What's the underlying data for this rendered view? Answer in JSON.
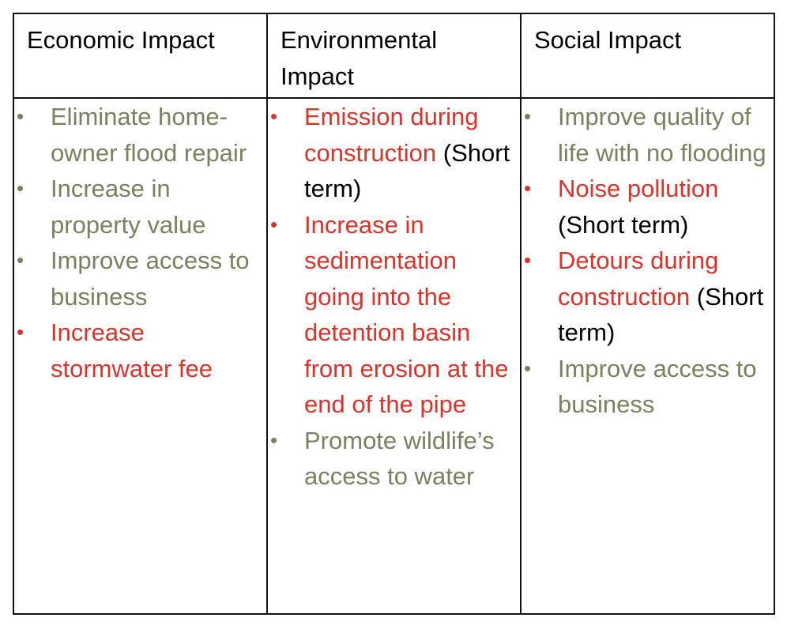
{
  "table": {
    "headers": [
      "Economic Impact",
      "Environmental Impact",
      "Social Impact"
    ],
    "bullet_glyph": "•",
    "colors": {
      "positive": "#7b8060",
      "negative": "#d9342b",
      "neutral": "#000000"
    },
    "columns": [
      {
        "items": [
          {
            "kind": "positive",
            "text": "Eliminate home-owner flood repair",
            "suffix": ""
          },
          {
            "kind": "positive",
            "text": "Increase in property value",
            "suffix": ""
          },
          {
            "kind": "positive",
            "text": "Improve access to business",
            "suffix": ""
          },
          {
            "kind": "negative",
            "text": "Increase stormwater fee",
            "suffix": ""
          }
        ]
      },
      {
        "items": [
          {
            "kind": "negative",
            "text": "Emission during construction",
            "suffix": "(Short term)"
          },
          {
            "kind": "negative",
            "text": "Increase in sedimentation going into the detention basin from erosion at the end of the pipe",
            "suffix": ""
          },
          {
            "kind": "positive",
            "text": "Promote wildlife’s access to water",
            "suffix": ""
          }
        ]
      },
      {
        "items": [
          {
            "kind": "positive",
            "text": "Improve quality of life with no flooding",
            "suffix": ""
          },
          {
            "kind": "negative",
            "text": "Noise pollution",
            "suffix": "(Short term)"
          },
          {
            "kind": "negative",
            "text": "Detours during construction",
            "suffix": "(Short term)"
          },
          {
            "kind": "positive",
            "text": "Improve access to business",
            "suffix": ""
          }
        ]
      }
    ]
  }
}
